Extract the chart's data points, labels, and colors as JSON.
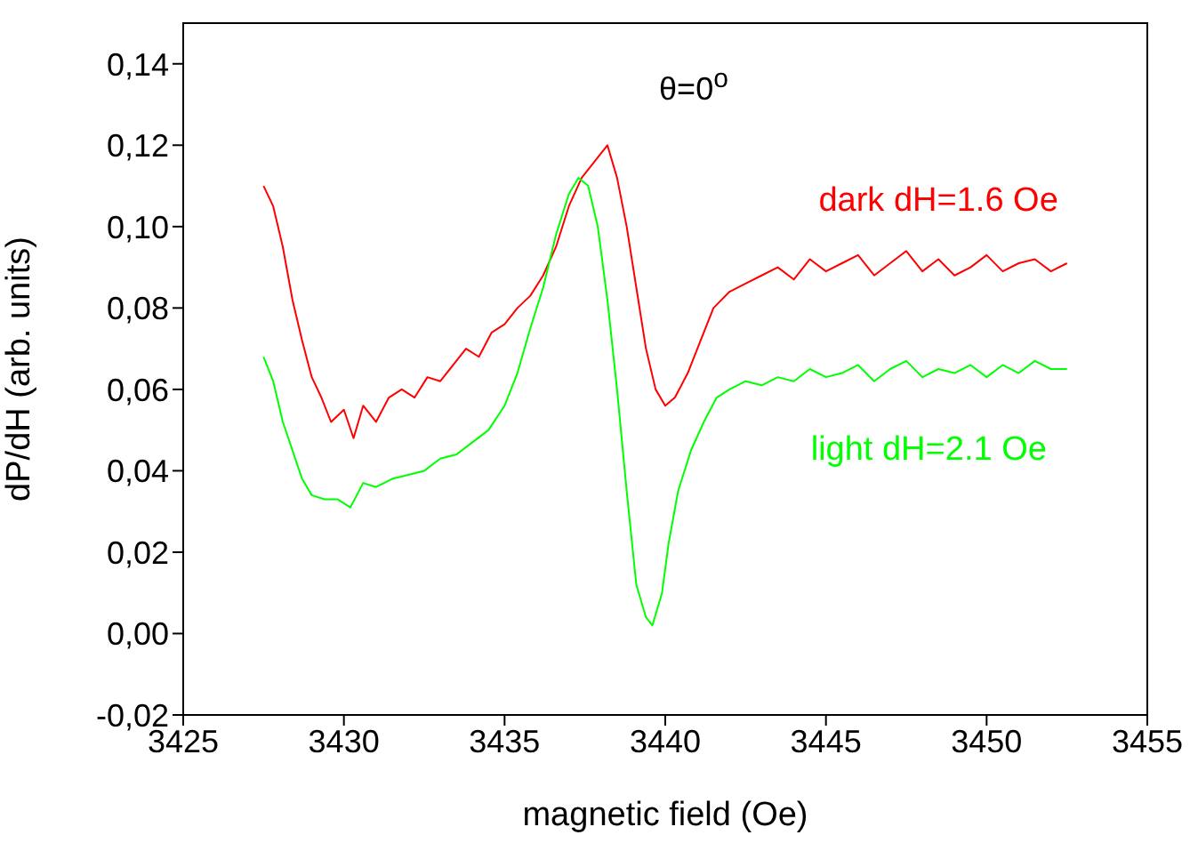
{
  "chart_data": {
    "type": "line",
    "xlabel": "magnetic field (Oe)",
    "ylabel": "dP/dH (arb. units)",
    "annotations": [
      "θ=0$^{o}$"
    ],
    "legend": false,
    "grid": false,
    "marker": "none",
    "line_style": "solid",
    "xlim": [
      3425,
      3455
    ],
    "xticks": [
      3425,
      3430,
      3435,
      3440,
      3445,
      3450,
      3455
    ],
    "ylim": [
      -0.02,
      0.15
    ],
    "yticks": [
      {
        "value": -0.02,
        "label": "-0,02"
      },
      {
        "value": 0,
        "label": "0,00"
      },
      {
        "value": 0.02,
        "label": "0,02"
      },
      {
        "value": 0.04,
        "label": "0,04"
      },
      {
        "value": 0.06,
        "label": "0,06"
      },
      {
        "value": 0.08,
        "label": "0,08"
      },
      {
        "value": 0.1,
        "label": "0,10"
      },
      {
        "value": 0.12,
        "label": "0,12"
      },
      {
        "value": 0.14,
        "label": "0,14"
      }
    ],
    "series": [
      {
        "name": "dark dH=1.6 Oe",
        "color": "#ff0000",
        "x": [
          3427.5,
          3427.8,
          3428.1,
          3428.4,
          3428.7,
          3429.0,
          3429.3,
          3429.6,
          3430.0,
          3430.3,
          3430.6,
          3431.0,
          3431.4,
          3431.8,
          3432.2,
          3432.6,
          3433.0,
          3433.4,
          3433.8,
          3434.2,
          3434.6,
          3435.0,
          3435.4,
          3435.8,
          3436.2,
          3436.6,
          3437.0,
          3437.4,
          3437.8,
          3438.2,
          3438.5,
          3438.8,
          3439.1,
          3439.4,
          3439.7,
          3440.0,
          3440.3,
          3440.7,
          3441.1,
          3441.5,
          3442.0,
          3442.5,
          3443.0,
          3443.5,
          3444,
          3444.5,
          3445,
          3445.5,
          3446,
          3446.5,
          3447,
          3447.5,
          3448,
          3448.5,
          3449,
          3449.5,
          3450,
          3450.5,
          3451,
          3451.5,
          3452,
          3452.5
        ],
        "values": [
          0.11,
          0.105,
          0.095,
          0.082,
          0.072,
          0.063,
          0.058,
          0.052,
          0.055,
          0.048,
          0.056,
          0.052,
          0.058,
          0.06,
          0.058,
          0.063,
          0.062,
          0.066,
          0.07,
          0.068,
          0.074,
          0.076,
          0.08,
          0.083,
          0.088,
          0.095,
          0.105,
          0.112,
          0.116,
          0.12,
          0.112,
          0.1,
          0.085,
          0.07,
          0.06,
          0.056,
          0.058,
          0.064,
          0.072,
          0.08,
          0.084,
          0.086,
          0.088,
          0.09,
          0.087,
          0.092,
          0.089,
          0.091,
          0.093,
          0.088,
          0.091,
          0.094,
          0.089,
          0.092,
          0.088,
          0.09,
          0.093,
          0.089,
          0.091,
          0.092,
          0.089,
          0.091
        ]
      },
      {
        "name": "light dH=2.1 Oe",
        "color": "#00ff00",
        "x": [
          3427.5,
          3427.8,
          3428.1,
          3428.4,
          3428.7,
          3429.0,
          3429.4,
          3429.8,
          3430.2,
          3430.6,
          3431.0,
          3431.5,
          3432.0,
          3432.5,
          3433.0,
          3433.5,
          3434.0,
          3434.5,
          3435.0,
          3435.4,
          3435.8,
          3436.2,
          3436.6,
          3437.0,
          3437.3,
          3437.6,
          3437.9,
          3438.2,
          3438.5,
          3438.8,
          3439.1,
          3439.4,
          3439.6,
          3439.9,
          3440.1,
          3440.4,
          3440.8,
          3441.2,
          3441.6,
          3442.0,
          3442.5,
          3443.0,
          3443.5,
          3444,
          3444.5,
          3445,
          3445.5,
          3446,
          3446.5,
          3447,
          3447.5,
          3448,
          3448.5,
          3449,
          3449.5,
          3450,
          3450.5,
          3451,
          3451.5,
          3452,
          3452.5
        ],
        "values": [
          0.068,
          0.062,
          0.052,
          0.045,
          0.038,
          0.034,
          0.033,
          0.033,
          0.031,
          0.037,
          0.036,
          0.038,
          0.039,
          0.04,
          0.043,
          0.044,
          0.047,
          0.05,
          0.056,
          0.064,
          0.075,
          0.085,
          0.098,
          0.108,
          0.112,
          0.11,
          0.1,
          0.082,
          0.06,
          0.035,
          0.012,
          0.004,
          0.002,
          0.01,
          0.022,
          0.035,
          0.045,
          0.052,
          0.058,
          0.06,
          0.062,
          0.061,
          0.063,
          0.062,
          0.065,
          0.063,
          0.064,
          0.066,
          0.062,
          0.065,
          0.067,
          0.063,
          0.065,
          0.064,
          0.066,
          0.063,
          0.066,
          0.064,
          0.067,
          0.065,
          0.065
        ]
      }
    ]
  }
}
